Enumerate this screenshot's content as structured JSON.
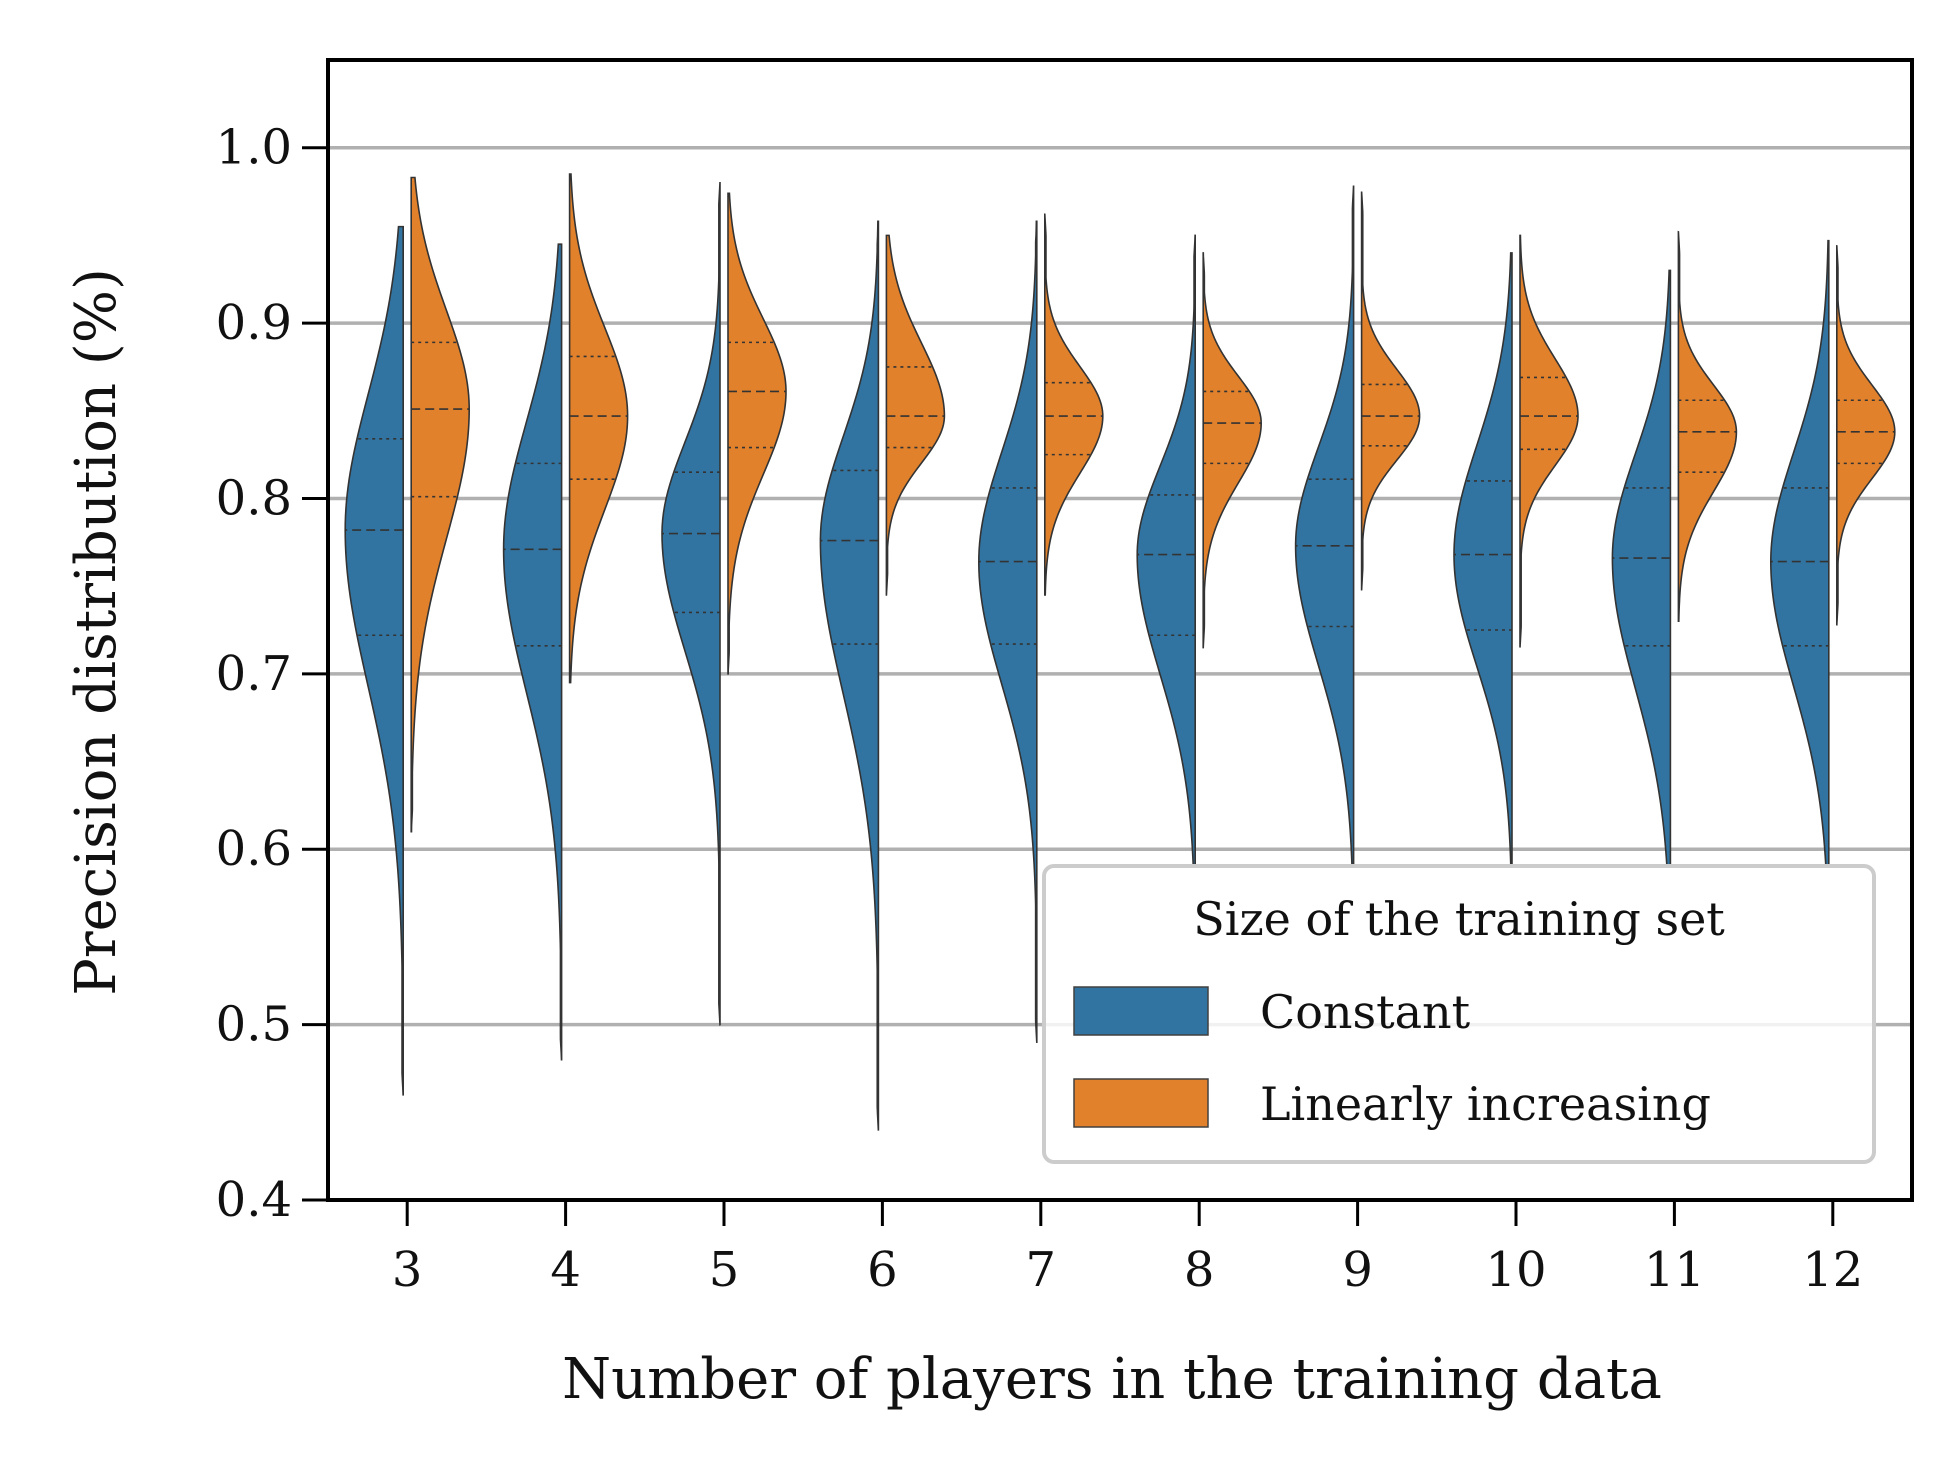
{
  "chart_data": {
    "type": "violin",
    "xlabel": "Number of players in the training data",
    "ylabel": "Precision distribution (%)",
    "categories": [
      "3",
      "4",
      "5",
      "6",
      "7",
      "8",
      "9",
      "10",
      "11",
      "12"
    ],
    "ylim": [
      0.4,
      1.05
    ],
    "yticks": [
      "0.4",
      "0.5",
      "0.6",
      "0.7",
      "0.8",
      "0.9",
      "1.0"
    ],
    "grid": "horizontal",
    "legend": {
      "title": "Size of the training set",
      "placement": "lower-right",
      "entries": [
        "Constant",
        "Linearly increasing"
      ]
    },
    "colors": {
      "Constant": "#3274a1",
      "Linearly increasing": "#e1812c"
    },
    "series": [
      {
        "name": "Constant",
        "side": "left",
        "min": [
          0.46,
          0.48,
          0.5,
          0.44,
          0.49,
          0.59,
          0.59,
          0.59,
          0.59,
          0.59
        ],
        "max": [
          0.955,
          0.945,
          0.98,
          0.958,
          0.958,
          0.95,
          0.978,
          0.94,
          0.93,
          0.947
        ],
        "q1": [
          0.722,
          0.716,
          0.735,
          0.717,
          0.717,
          0.722,
          0.727,
          0.725,
          0.716,
          0.716
        ],
        "median": [
          0.782,
          0.771,
          0.78,
          0.776,
          0.764,
          0.768,
          0.773,
          0.768,
          0.766,
          0.764
        ],
        "q3": [
          0.834,
          0.82,
          0.815,
          0.816,
          0.806,
          0.802,
          0.811,
          0.81,
          0.806,
          0.806
        ]
      },
      {
        "name": "Linearly increasing",
        "side": "right",
        "min": [
          0.61,
          0.695,
          0.7,
          0.745,
          0.745,
          0.715,
          0.748,
          0.715,
          0.73,
          0.728
        ],
        "max": [
          0.983,
          0.985,
          0.974,
          0.95,
          0.962,
          0.94,
          0.975,
          0.95,
          0.952,
          0.944
        ],
        "q1": [
          0.801,
          0.811,
          0.829,
          0.829,
          0.825,
          0.82,
          0.83,
          0.828,
          0.815,
          0.82
        ],
        "median": [
          0.851,
          0.847,
          0.861,
          0.847,
          0.847,
          0.843,
          0.847,
          0.847,
          0.838,
          0.838
        ],
        "q3": [
          0.889,
          0.881,
          0.889,
          0.875,
          0.866,
          0.861,
          0.865,
          0.869,
          0.856,
          0.856
        ]
      }
    ]
  }
}
